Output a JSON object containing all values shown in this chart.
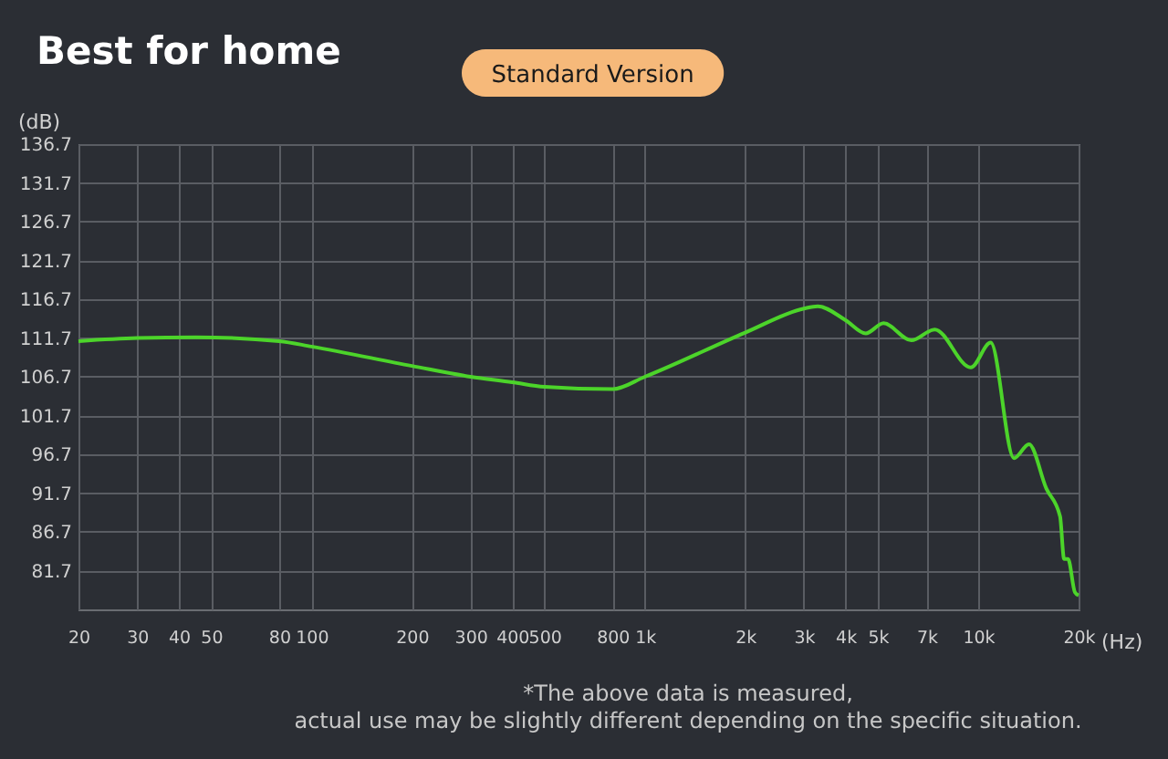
{
  "chart_data": {
    "type": "line",
    "title": "Best for home",
    "subtitle": "Standard Version",
    "xlabel": "(Hz)",
    "ylabel": "(dB)",
    "log": "x",
    "grid": true,
    "line_style": "solid",
    "marker": "none",
    "xlim": [
      20,
      20000
    ],
    "ylim": [
      76.7,
      136.7
    ],
    "xticks": [
      20,
      30,
      40,
      50,
      80,
      100,
      200,
      300,
      400,
      500,
      800,
      {
        "value": 1000,
        "label": "1k"
      },
      {
        "value": 2000,
        "label": "2k"
      },
      {
        "value": 3000,
        "label": "3k"
      },
      {
        "value": 4000,
        "label": "4k"
      },
      {
        "value": 5000,
        "label": "5k"
      },
      {
        "value": 7000,
        "label": "7k"
      },
      {
        "value": 10000,
        "label": "10k"
      },
      {
        "value": 20000,
        "label": "20k"
      }
    ],
    "yticks": [
      81.7,
      86.7,
      91.7,
      96.7,
      101.7,
      106.7,
      111.7,
      116.7,
      121.7,
      126.7,
      131.7,
      136.7
    ],
    "series": [
      {
        "color": "#4cd42a",
        "x": [
          20,
          30,
          45,
          80,
          100,
          200,
          300,
          400,
          500,
          800,
          1000,
          2000,
          3000,
          3300,
          4000,
          4600,
          5200,
          6300,
          7400,
          9500,
          10900,
          12800,
          14200,
          16000,
          17600,
          18100,
          18600,
          19500,
          20000
        ],
        "values": [
          111.3,
          111.7,
          111.8,
          111.3,
          110.6,
          108.1,
          106.7,
          106.0,
          105.4,
          105.1,
          106.7,
          112.4,
          115.5,
          115.8,
          114.0,
          112.3,
          113.6,
          111.4,
          112.8,
          107.9,
          111.1,
          96.2,
          98.0,
          92.3,
          88.7,
          83.2,
          83.2,
          78.9,
          78.5
        ]
      }
    ],
    "annotations": [
      "*The above data is measured,",
      "actual use may be slightly different depending on the specific situation."
    ]
  }
}
